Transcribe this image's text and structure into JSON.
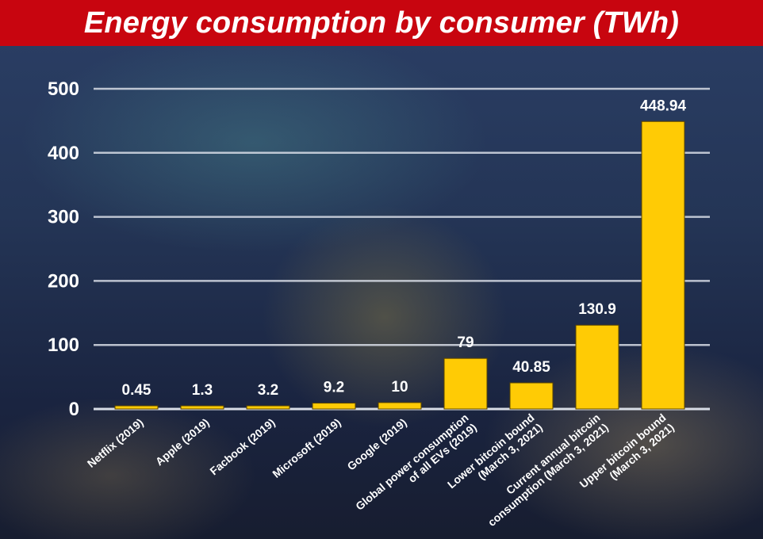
{
  "header": {
    "title": "Energy consumption by consumer (TWh)"
  },
  "colors": {
    "title_background": "#c8050f",
    "bar_fill": "#ffcb05",
    "bar_stroke": "#5a4400",
    "gridline": "#d8dde6",
    "text": "#ffffff"
  },
  "chart_data": {
    "type": "bar",
    "title": "Energy consumption by consumer (TWh)",
    "xlabel": "",
    "ylabel": "",
    "ylim": [
      0,
      500
    ],
    "yticks": [
      0,
      100,
      200,
      300,
      400,
      500
    ],
    "grid": true,
    "categories": [
      [
        "Netflix (2019)"
      ],
      [
        "Apple (2019)"
      ],
      [
        "Facbook (2019)"
      ],
      [
        "Microsoft (2019)"
      ],
      [
        "Google (2019)"
      ],
      [
        "Global power consumption",
        "of all EVs (2019)"
      ],
      [
        "Lower bitcoin bound",
        "(March 3, 2021)"
      ],
      [
        "Current annual bitcoin",
        "consumption (March 3, 2021)"
      ],
      [
        "Upper bitcoin bound",
        "(March 3, 2021)"
      ]
    ],
    "values": [
      0.45,
      1.3,
      3.2,
      9.2,
      10,
      79,
      40.85,
      130.9,
      448.94
    ],
    "value_labels": [
      "0.45",
      "1.3",
      "3.2",
      "9.2",
      "10",
      "79",
      "40.85",
      "130.9",
      "448.94"
    ]
  }
}
